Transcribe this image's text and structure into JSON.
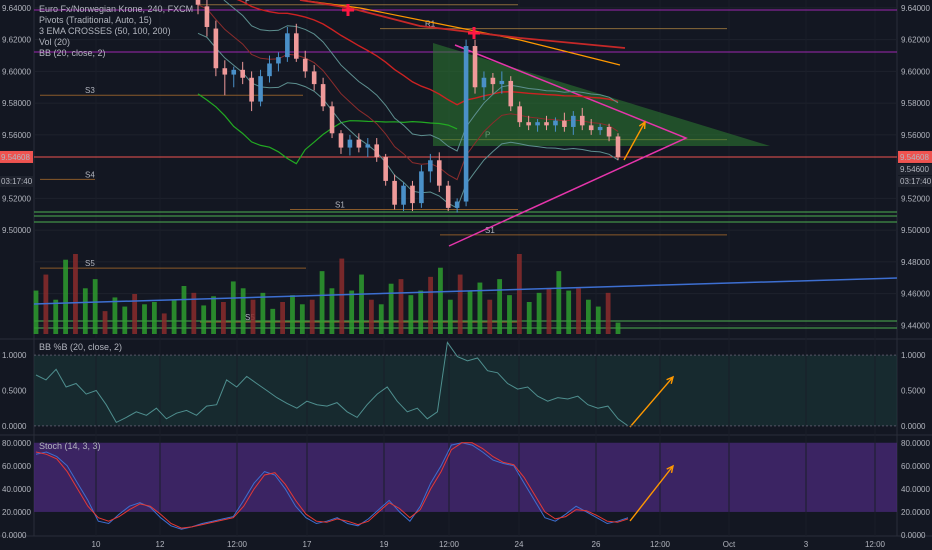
{
  "legend": [
    "Euro Fx/Norwegian Krone, 240, FXCM",
    "Pivots (Traditional, Auto, 15)",
    "3 EMA CROSSES (50, 100, 200)",
    "Vol (20)",
    "BB (20, close, 2)"
  ],
  "price_tag": {
    "value": "9.54608",
    "sub_value": "9.54600",
    "countdown": "03:17:40"
  },
  "left_tag": {
    "value": "9.54608",
    "countdown": "03:17:40"
  },
  "pivot_labels": [
    "P",
    "R1",
    "S3",
    "S4",
    "S1",
    "S1",
    "P",
    "S5",
    "S5"
  ],
  "colors": {
    "up": "#26a69a",
    "down": "#ef9a9a",
    "upbar": "#4a90c8",
    "volume_up": "#2e9c2e",
    "volume_down": "#8b2c2c",
    "triangle": "#e535ab",
    "ema_fast": "#22aa22",
    "ema_mid": "#cc2222",
    "ema_slow": "#ff9800",
    "bb": "#5d8f8f",
    "stoch_bg": "#4a2a7a"
  },
  "chart_data": [
    {
      "type": "candlestick",
      "title": "Euro Fx/Norwegian Krone, 240, FXCM",
      "x_ticks": [
        "10",
        "12",
        "12:00",
        "17",
        "19",
        "12:00",
        "24",
        "26",
        "12:00",
        "Oct",
        "3",
        "12:00"
      ],
      "y_ticks": [
        "9.64000",
        "9.62000",
        "9.60000",
        "9.58000",
        "9.56000",
        "9.54600",
        "9.52000",
        "9.50000",
        "9.48000",
        "9.46000",
        "9.44000"
      ],
      "ylim": [
        9.432,
        9.645
      ],
      "last_price": 9.54608,
      "candles": [
        [
          9.655,
          9.66,
          9.636,
          9.642
        ],
        [
          9.641,
          9.646,
          9.622,
          9.628
        ],
        [
          9.627,
          9.632,
          9.597,
          9.602
        ],
        [
          9.602,
          9.607,
          9.585,
          9.598
        ],
        [
          9.598,
          9.603,
          9.59,
          9.601
        ],
        [
          9.601,
          9.606,
          9.592,
          9.596
        ],
        [
          9.596,
          9.6,
          9.575,
          9.581
        ],
        [
          9.581,
          9.601,
          9.578,
          9.597
        ],
        [
          9.597,
          9.61,
          9.593,
          9.605
        ],
        [
          9.605,
          9.612,
          9.6,
          9.609
        ],
        [
          9.609,
          9.628,
          9.606,
          9.624
        ],
        [
          9.624,
          9.63,
          9.606,
          9.608
        ],
        [
          9.608,
          9.613,
          9.596,
          9.6
        ],
        [
          9.6,
          9.604,
          9.588,
          9.592
        ],
        [
          9.592,
          9.596,
          9.575,
          9.578
        ],
        [
          9.578,
          9.581,
          9.558,
          9.561
        ],
        [
          9.561,
          9.563,
          9.548,
          9.552
        ],
        [
          9.552,
          9.56,
          9.547,
          9.557
        ],
        [
          9.557,
          9.561,
          9.549,
          9.552
        ],
        [
          9.552,
          9.558,
          9.546,
          9.554
        ],
        [
          9.554,
          9.558,
          9.543,
          9.546
        ],
        [
          9.546,
          9.548,
          9.528,
          9.531
        ],
        [
          9.531,
          9.535,
          9.513,
          9.516
        ],
        [
          9.516,
          9.53,
          9.512,
          9.528
        ],
        [
          9.528,
          9.531,
          9.512,
          9.517
        ],
        [
          9.517,
          9.541,
          9.514,
          9.537
        ],
        [
          9.537,
          9.548,
          9.53,
          9.544
        ],
        [
          9.544,
          9.549,
          9.524,
          9.528
        ],
        [
          9.528,
          9.531,
          9.512,
          9.514
        ],
        [
          9.514,
          9.52,
          9.511,
          9.518
        ],
        [
          9.518,
          9.62,
          9.515,
          9.616
        ],
        [
          9.616,
          9.62,
          9.586,
          9.59
        ],
        [
          9.59,
          9.6,
          9.582,
          9.596
        ],
        [
          9.596,
          9.599,
          9.586,
          9.592
        ],
        [
          9.592,
          9.6,
          9.586,
          9.594
        ],
        [
          9.594,
          9.597,
          9.575,
          9.578
        ],
        [
          9.578,
          9.581,
          9.565,
          9.568
        ],
        [
          9.568,
          9.572,
          9.563,
          9.566
        ],
        [
          9.566,
          9.57,
          9.562,
          9.568
        ],
        [
          9.568,
          9.572,
          9.563,
          9.566
        ],
        [
          9.566,
          9.571,
          9.562,
          9.569
        ],
        [
          9.569,
          9.574,
          9.562,
          9.565
        ],
        [
          9.565,
          9.575,
          9.56,
          9.572
        ],
        [
          9.572,
          9.577,
          9.563,
          9.566
        ],
        [
          9.566,
          9.57,
          9.56,
          9.563
        ],
        [
          9.563,
          9.567,
          9.56,
          9.565
        ],
        [
          9.565,
          9.567,
          9.556,
          9.559
        ],
        [
          9.559,
          9.561,
          9.544,
          9.546
        ]
      ],
      "pivots": [
        {
          "label": "P",
          "value": 9.642
        },
        {
          "label": "R1",
          "value": 9.627
        },
        {
          "label": "S3",
          "value": 9.585
        },
        {
          "label": "S4",
          "value": 9.532
        },
        {
          "label": "S1",
          "value": 9.513
        },
        {
          "label": "S1",
          "value": 9.497
        },
        {
          "label": "P",
          "value": 9.557
        },
        {
          "label": "S5",
          "value": 9.476
        },
        {
          "label": "S5",
          "value": 9.442
        }
      ]
    },
    {
      "type": "bar",
      "title": "Vol (20)",
      "values": [
        38,
        52,
        30,
        65,
        70,
        40,
        48,
        20,
        32,
        24,
        35,
        26,
        28,
        18,
        30,
        42,
        36,
        25,
        33,
        28,
        46,
        40,
        30,
        36,
        22,
        28,
        34,
        26,
        30,
        55,
        40,
        66,
        38,
        52,
        30,
        26,
        44,
        48,
        34,
        38,
        50,
        58,
        30,
        52,
        38,
        45,
        30,
        48,
        34,
        70,
        28,
        36,
        40,
        55,
        38,
        40,
        30,
        24,
        36,
        10
      ]
    },
    {
      "type": "line",
      "title": "BB %B (20, close, 2)",
      "y_ticks": [
        "1.0000",
        "0.5000",
        "0.0000"
      ],
      "ylim": [
        -0.1,
        1.2
      ],
      "values": [
        0.72,
        0.65,
        0.8,
        0.55,
        0.6,
        0.45,
        0.5,
        0.3,
        0.05,
        0.12,
        0.2,
        0.15,
        0.25,
        0.1,
        0.18,
        0.22,
        0.15,
        0.28,
        0.3,
        0.65,
        0.55,
        0.7,
        0.6,
        0.5,
        0.4,
        0.32,
        0.25,
        0.35,
        0.3,
        0.28,
        0.33,
        0.2,
        0.12,
        0.3,
        0.45,
        0.55,
        0.35,
        0.2,
        0.25,
        0.1,
        0.2,
        1.18,
        0.98,
        0.92,
        0.96,
        0.78,
        0.75,
        0.6,
        0.52,
        0.55,
        0.42,
        0.35,
        0.4,
        0.38,
        0.42,
        0.3,
        0.25,
        0.28,
        0.1,
        0.0
      ]
    },
    {
      "type": "line",
      "title": "Stoch (14, 3, 3)",
      "y_ticks": [
        "80.0000",
        "60.0000",
        "40.0000",
        "20.0000",
        "0.0000"
      ],
      "ylim": [
        0,
        85
      ],
      "series": [
        {
          "values": [
            70,
            72,
            68,
            60,
            45,
            30,
            12,
            10,
            18,
            25,
            28,
            24,
            15,
            8,
            5,
            7,
            10,
            12,
            14,
            16,
            30,
            45,
            55,
            52,
            40,
            25,
            15,
            10,
            12,
            15,
            10,
            8,
            14,
            22,
            30,
            20,
            12,
            25,
            45,
            60,
            78,
            80,
            78,
            72,
            65,
            62,
            60,
            45,
            30,
            15,
            12,
            18,
            25,
            20,
            15,
            10,
            12,
            15
          ]
        },
        {
          "values": [
            72,
            70,
            66,
            55,
            40,
            25,
            15,
            12,
            16,
            22,
            27,
            25,
            18,
            10,
            6,
            7,
            9,
            11,
            13,
            15,
            25,
            40,
            52,
            54,
            44,
            30,
            18,
            12,
            11,
            14,
            12,
            9,
            12,
            20,
            28,
            23,
            15,
            22,
            40,
            55,
            74,
            80,
            80,
            75,
            68,
            63,
            61,
            50,
            35,
            20,
            14,
            16,
            22,
            21,
            17,
            12,
            11,
            14
          ]
        }
      ]
    }
  ]
}
